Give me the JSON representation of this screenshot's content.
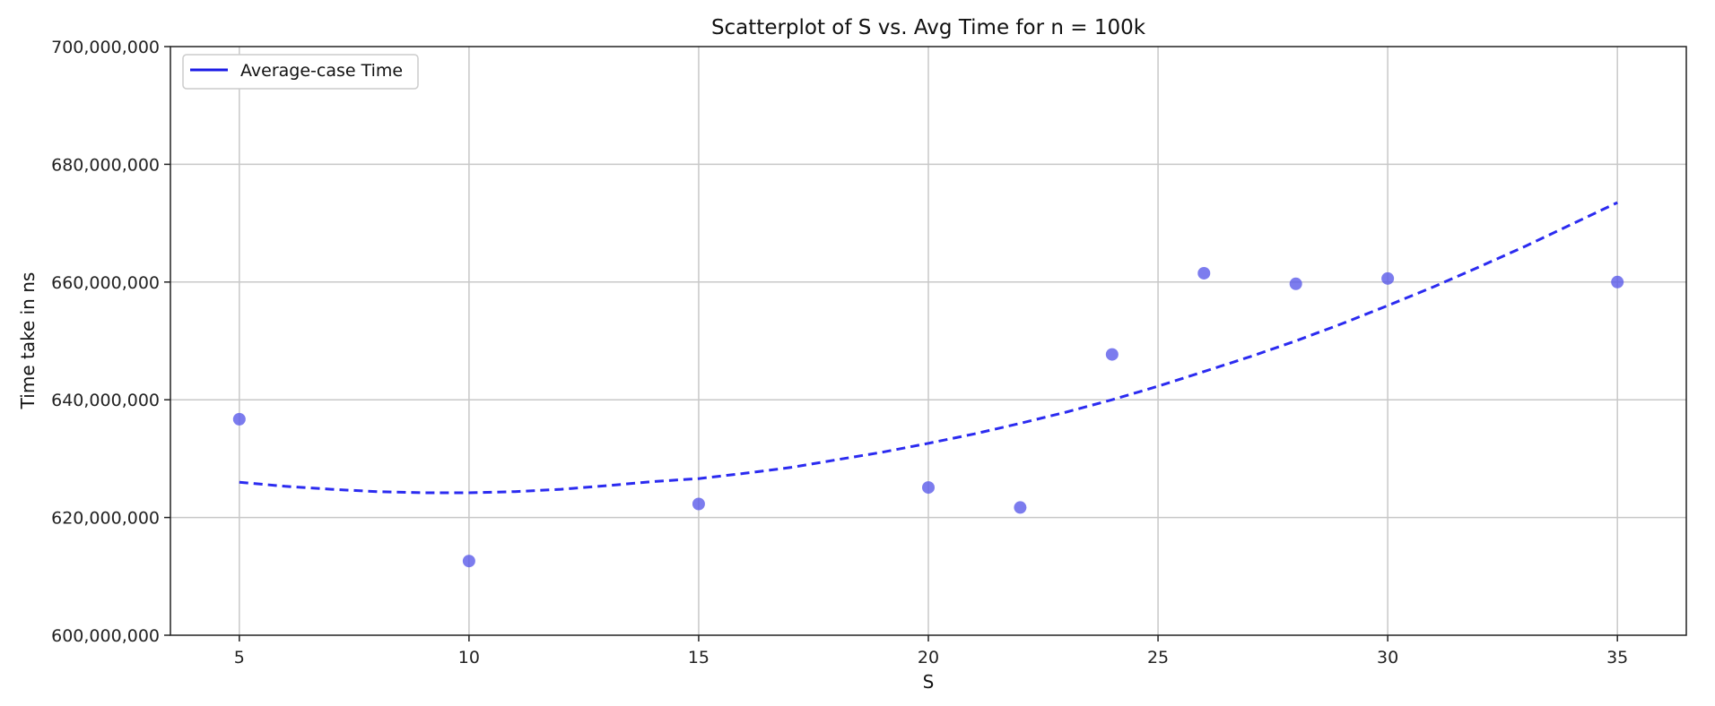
{
  "chart_data": {
    "type": "scatter",
    "title": "Scatterplot of S vs. Avg Time for n = 100k",
    "xlabel": "S",
    "ylabel": "Time take in ns",
    "xlim": [
      3.5,
      36.5
    ],
    "ylim": [
      600000000,
      700000000
    ],
    "xticks": [
      5,
      10,
      15,
      20,
      25,
      30,
      35
    ],
    "yticks": [
      600000000,
      620000000,
      640000000,
      660000000,
      680000000,
      700000000
    ],
    "ytick_labels": [
      "600,000,000",
      "620,000,000",
      "640,000,000",
      "660,000,000",
      "680,000,000",
      "700,000,000"
    ],
    "grid": true,
    "legend_position": "top-left",
    "series": [
      {
        "kind": "scatter",
        "color": "#5b5bea",
        "x": [
          5,
          10,
          15,
          20,
          22,
          24,
          26,
          28,
          30,
          35
        ],
        "y": [
          636700000,
          612600000,
          622300000,
          625100000,
          621700000,
          647700000,
          661500000,
          659700000,
          660600000,
          660000000
        ]
      },
      {
        "kind": "line",
        "style": "dashed",
        "name": "Average-case Time",
        "color": "#2b2bf0",
        "x": [
          5,
          6,
          7,
          8,
          9,
          10,
          11,
          12,
          13,
          14,
          15,
          16,
          17,
          18,
          19,
          20,
          21,
          22,
          23,
          24,
          25,
          26,
          27,
          28,
          29,
          30,
          31,
          32,
          33,
          34,
          35
        ],
        "y": [
          626000000,
          625300000,
          624800000,
          624400000,
          624200000,
          624200000,
          624400000,
          624800000,
          625400000,
          626100000,
          626600000,
          627500000,
          628500000,
          629800000,
          631100000,
          632600000,
          634200000,
          636000000,
          637900000,
          640000000,
          642300000,
          644800000,
          647300000,
          650000000,
          652900000,
          656000000,
          659200000,
          662600000,
          666100000,
          669800000,
          673500000
        ]
      }
    ]
  }
}
